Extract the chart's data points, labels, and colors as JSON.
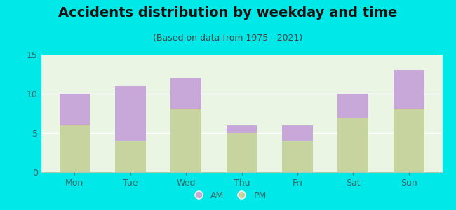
{
  "categories": [
    "Mon",
    "Tue",
    "Wed",
    "Thu",
    "Fri",
    "Sat",
    "Sun"
  ],
  "pm_values": [
    6,
    4,
    8,
    5,
    4,
    7,
    8
  ],
  "am_values": [
    4,
    7,
    4,
    1,
    2,
    3,
    5
  ],
  "am_color": "#c8a8d8",
  "pm_color": "#c8d4a0",
  "title": "Accidents distribution by weekday and time",
  "subtitle": "(Based on data from 1975 - 2021)",
  "ylim": [
    0,
    15
  ],
  "yticks": [
    0,
    5,
    10,
    15
  ],
  "background_color": "#eaf5e4",
  "outer_background": "#00e8e8",
  "title_fontsize": 14,
  "subtitle_fontsize": 9,
  "tick_fontsize": 9,
  "legend_fontsize": 9,
  "bar_width": 0.55,
  "title_color": "#111111",
  "subtitle_color": "#444444",
  "tick_color": "#336666"
}
